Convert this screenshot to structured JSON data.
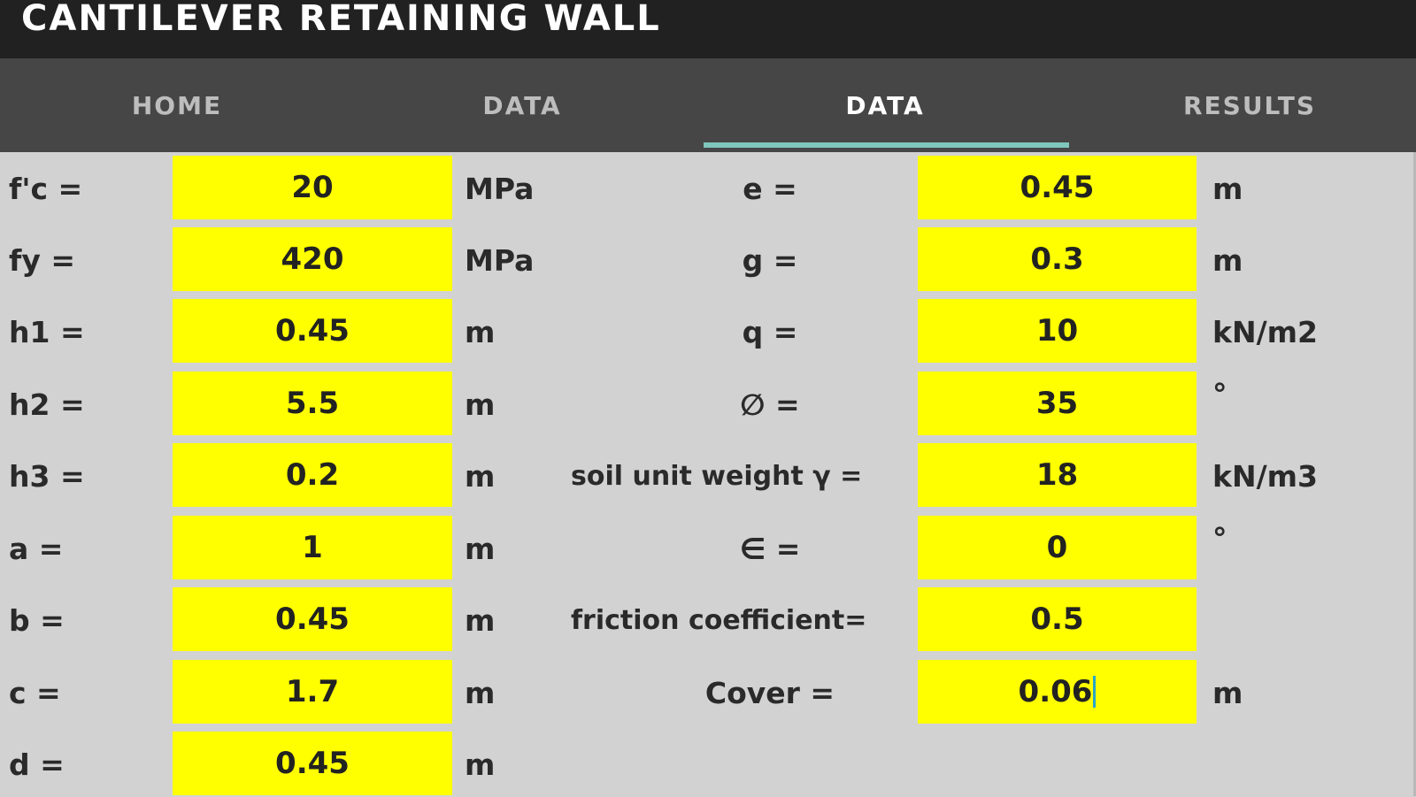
{
  "app": {
    "title": "CANTILEVER RETAINING WALL"
  },
  "tabs": [
    {
      "label": "HOME",
      "active": false
    },
    {
      "label": "DATA",
      "active": false
    },
    {
      "label": "DATA",
      "active": true
    },
    {
      "label": "RESULTS",
      "active": false
    }
  ],
  "colors": {
    "input_bg": "#ffff00",
    "tab_indicator": "#7fc7bd",
    "title_bg": "#212121",
    "tab_bg": "#464646"
  },
  "left_fields": [
    {
      "label": "f'c =",
      "value": "20",
      "unit": "MPa"
    },
    {
      "label": "fy =",
      "value": "420",
      "unit": "MPa"
    },
    {
      "label": "h1 =",
      "value": "0.45",
      "unit": "m"
    },
    {
      "label": "h2 =",
      "value": "5.5",
      "unit": "m"
    },
    {
      "label": "h3 =",
      "value": "0.2",
      "unit": "m"
    },
    {
      "label": "a =",
      "value": "1",
      "unit": "m"
    },
    {
      "label": "b =",
      "value": "0.45",
      "unit": "m"
    },
    {
      "label": "c =",
      "value": "1.7",
      "unit": "m"
    },
    {
      "label": "d =",
      "value": "0.45",
      "unit": "m"
    }
  ],
  "right_fields": [
    {
      "label": "e =",
      "value": "0.45",
      "unit": "m"
    },
    {
      "label": "g =",
      "value": "0.3",
      "unit": "m"
    },
    {
      "label": "q =",
      "value": "10",
      "unit": "kN/m2"
    },
    {
      "label": "∅ =",
      "value": "35",
      "unit": "°"
    },
    {
      "label": "soil unit weight γ =",
      "value": "18",
      "unit": "kN/m3"
    },
    {
      "label": "∈ =",
      "value": "0",
      "unit": "°"
    },
    {
      "label": "friction coefficient=",
      "value": "0.5",
      "unit": ""
    },
    {
      "label": "Cover =",
      "value": "0.06",
      "unit": "m",
      "focused": true
    }
  ]
}
